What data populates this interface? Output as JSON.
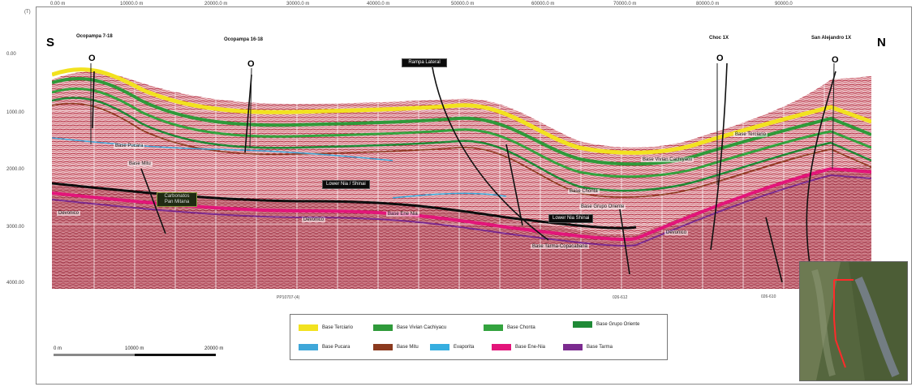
{
  "top_axis": {
    "corner_label": "(T)",
    "ticks": [
      "0.00 m",
      "10000.0 m",
      "20000.0 m",
      "30000.0 m",
      "40000.0 m",
      "50000.0 m",
      "60000.0 m",
      "70000.0 m",
      "80000.0 m",
      "90000.0"
    ]
  },
  "left_axis": {
    "ticks": [
      "0.00",
      "1000.00",
      "2000.00",
      "3000.00",
      "4000.00"
    ]
  },
  "directions": {
    "south": "S",
    "north": "N"
  },
  "wells": [
    {
      "name": "Ocopampa 7-18",
      "symbol": "O"
    },
    {
      "name": "Ocopampa 16-18",
      "symbol": "O"
    },
    {
      "name": "Choc 1X",
      "symbol": "O"
    },
    {
      "name": "San Alejandro 1X",
      "symbol": "O"
    }
  ],
  "callouts": {
    "rampa_lateral": "Rampa Lateral",
    "lower_nia_shinai_1": "Lower Nia / Shinai",
    "lower_nia_shinai_2": "Lower Nia Shinai",
    "carbonatos": "Carbonatos Pan Mitana"
  },
  "horizon_labels": {
    "base_pucara": "Base Pucara",
    "base_mitu": "Base Mitu",
    "devonico_1": "Devonico",
    "devonico_2": "Devonico",
    "devonico_3": "Devonico",
    "base_ene_nia": "Base Ene Nia",
    "base_terciario": "Base Terciario",
    "base_vivian_cachiyacu": "Base Vivian Cachiyacu",
    "base_chonta": "Base Chonta",
    "base_grupo_oriente": "Base Grupo Oriente",
    "base_tarma_copacabana": "Base Tarma-Copacabana"
  },
  "bottom_labels": {
    "line_name": "PP10707-(4)",
    "tie_1": "026-612",
    "tie_2": "026-610"
  },
  "legend": [
    {
      "label": "Base Terciario",
      "color": "#f2e21f"
    },
    {
      "label": "Base Vivian Cachiyacu",
      "color": "#2f9a3a"
    },
    {
      "label": "Base Chonta",
      "color": "#33a33e"
    },
    {
      "label": "Base Grupo Oriente",
      "color": "#1f8a36"
    },
    {
      "label": "Base Pucara",
      "color": "#3fa7d9"
    },
    {
      "label": "Base Mitu",
      "color": "#8b3a1e"
    },
    {
      "label": "Evaporita",
      "color": "#36aee0"
    },
    {
      "label": "Base Ene-Nia",
      "color": "#e3157a"
    },
    {
      "label": "Base Tarma",
      "color": "#7b2b8f"
    }
  ],
  "scale": {
    "start": "0 m",
    "mid": "10000 m",
    "end": "20000 m"
  },
  "colors": {
    "seismic_bg": "#e9b9bf",
    "seismic_stripe": "#b01e2e",
    "fault": "#111111",
    "grid": "#ffffff"
  }
}
